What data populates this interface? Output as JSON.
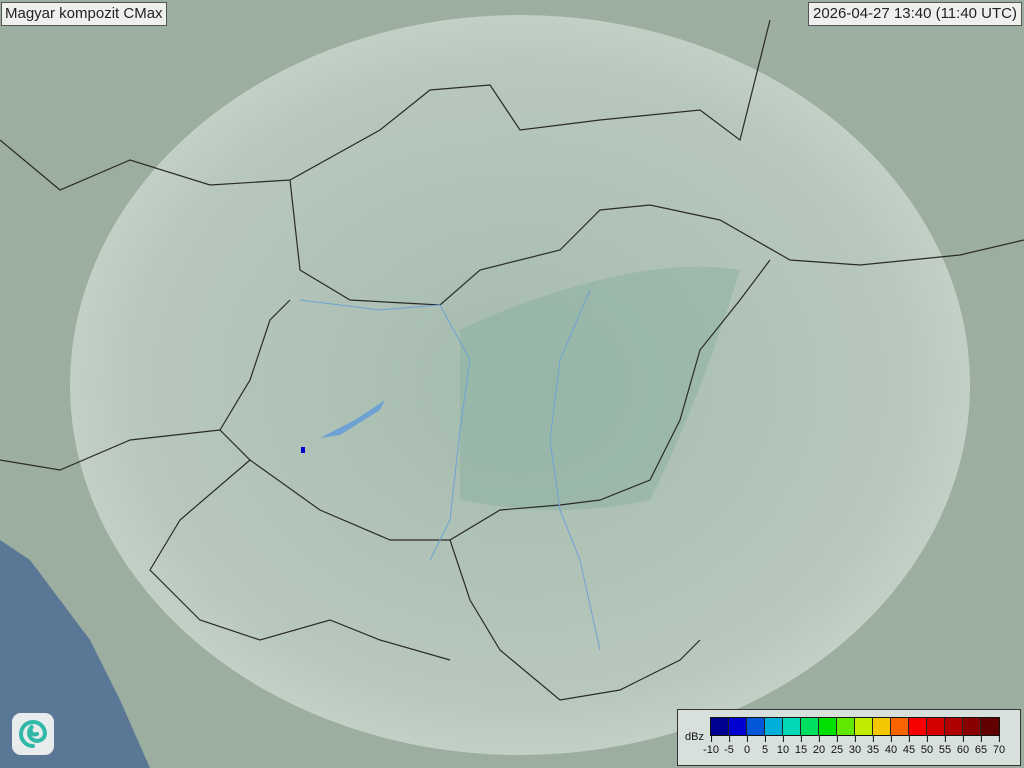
{
  "title": "Magyar kompozit  CMax",
  "timestamp": "2026-04-27 13:40 (11:40 UTC)",
  "legend": {
    "unit": "dBz",
    "ticks": [
      "-10",
      "-5",
      "0",
      "5",
      "10",
      "15",
      "20",
      "25",
      "30",
      "35",
      "40",
      "45",
      "50",
      "55",
      "60",
      "65",
      "70"
    ],
    "colors": [
      "#000090",
      "#0000d0",
      "#0058d8",
      "#00b0d8",
      "#00d8b8",
      "#00e060",
      "#00e000",
      "#60e800",
      "#c0ec00",
      "#f4c800",
      "#f86400",
      "#f80000",
      "#d40000",
      "#b00000",
      "#880000",
      "#600000"
    ]
  },
  "logo": {
    "icon": "weather-service-swirl-logo"
  },
  "map": {
    "region": "Carpathian Basin",
    "colors": {
      "land": "#9fb3a6",
      "sea": "#5a7896",
      "coverage": "#c9d6cf",
      "border": "#2a2a2a",
      "river": "#6fa2d4"
    }
  }
}
